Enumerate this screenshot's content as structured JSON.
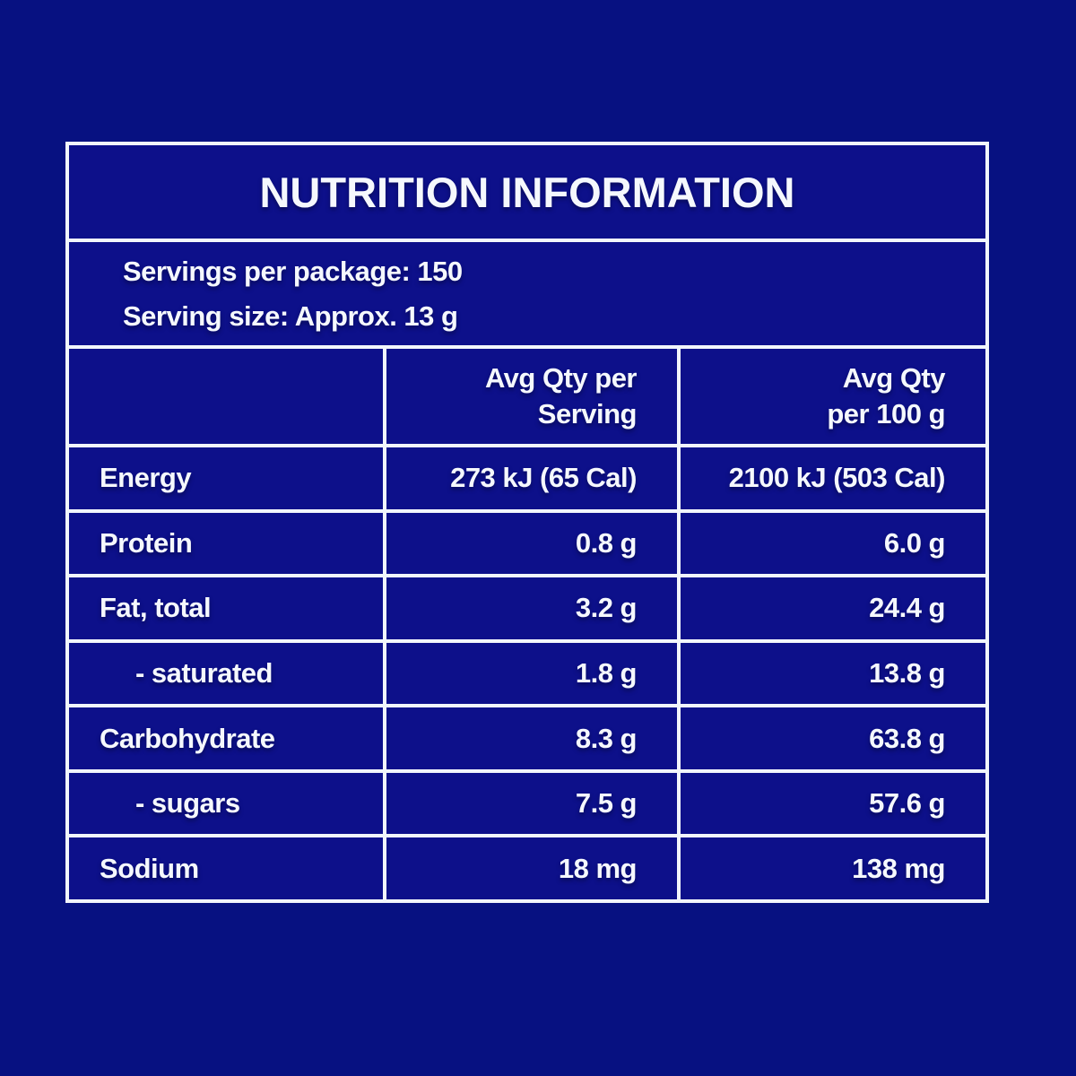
{
  "colors": {
    "page_bg": "#071181",
    "cell_bg": "#0d108a",
    "border_color": "#f2f6fb",
    "text_color": "#f5f8fd"
  },
  "title": "NUTRITION INFORMATION",
  "serving_info": {
    "servings_per_package": "Servings per package: 150",
    "serving_size": "Serving size: Approx. 13 g"
  },
  "columns": {
    "per_serving": {
      "line1": "Avg Qty per",
      "line2": "Serving"
    },
    "per_100g": {
      "line1": "Avg Qty",
      "line2": "per 100 g"
    }
  },
  "rows": [
    {
      "label": "Energy",
      "per_serving": "273 kJ (65 Cal)",
      "per_100g": "2100 kJ (503 Cal)"
    },
    {
      "label": "Protein",
      "per_serving": "0.8 g",
      "per_100g": "6.0 g"
    },
    {
      "label": "Fat, total",
      "per_serving": "3.2 g",
      "per_100g": "24.4 g"
    },
    {
      "label": "- saturated",
      "per_serving": "1.8 g",
      "per_100g": "13.8 g"
    },
    {
      "label": "Carbohydrate",
      "per_serving": "8.3 g",
      "per_100g": "63.8 g"
    },
    {
      "label": "- sugars",
      "per_serving": "7.5 g",
      "per_100g": "57.6 g"
    },
    {
      "label": "Sodium",
      "per_serving": "18 mg",
      "per_100g": "138 mg"
    }
  ]
}
